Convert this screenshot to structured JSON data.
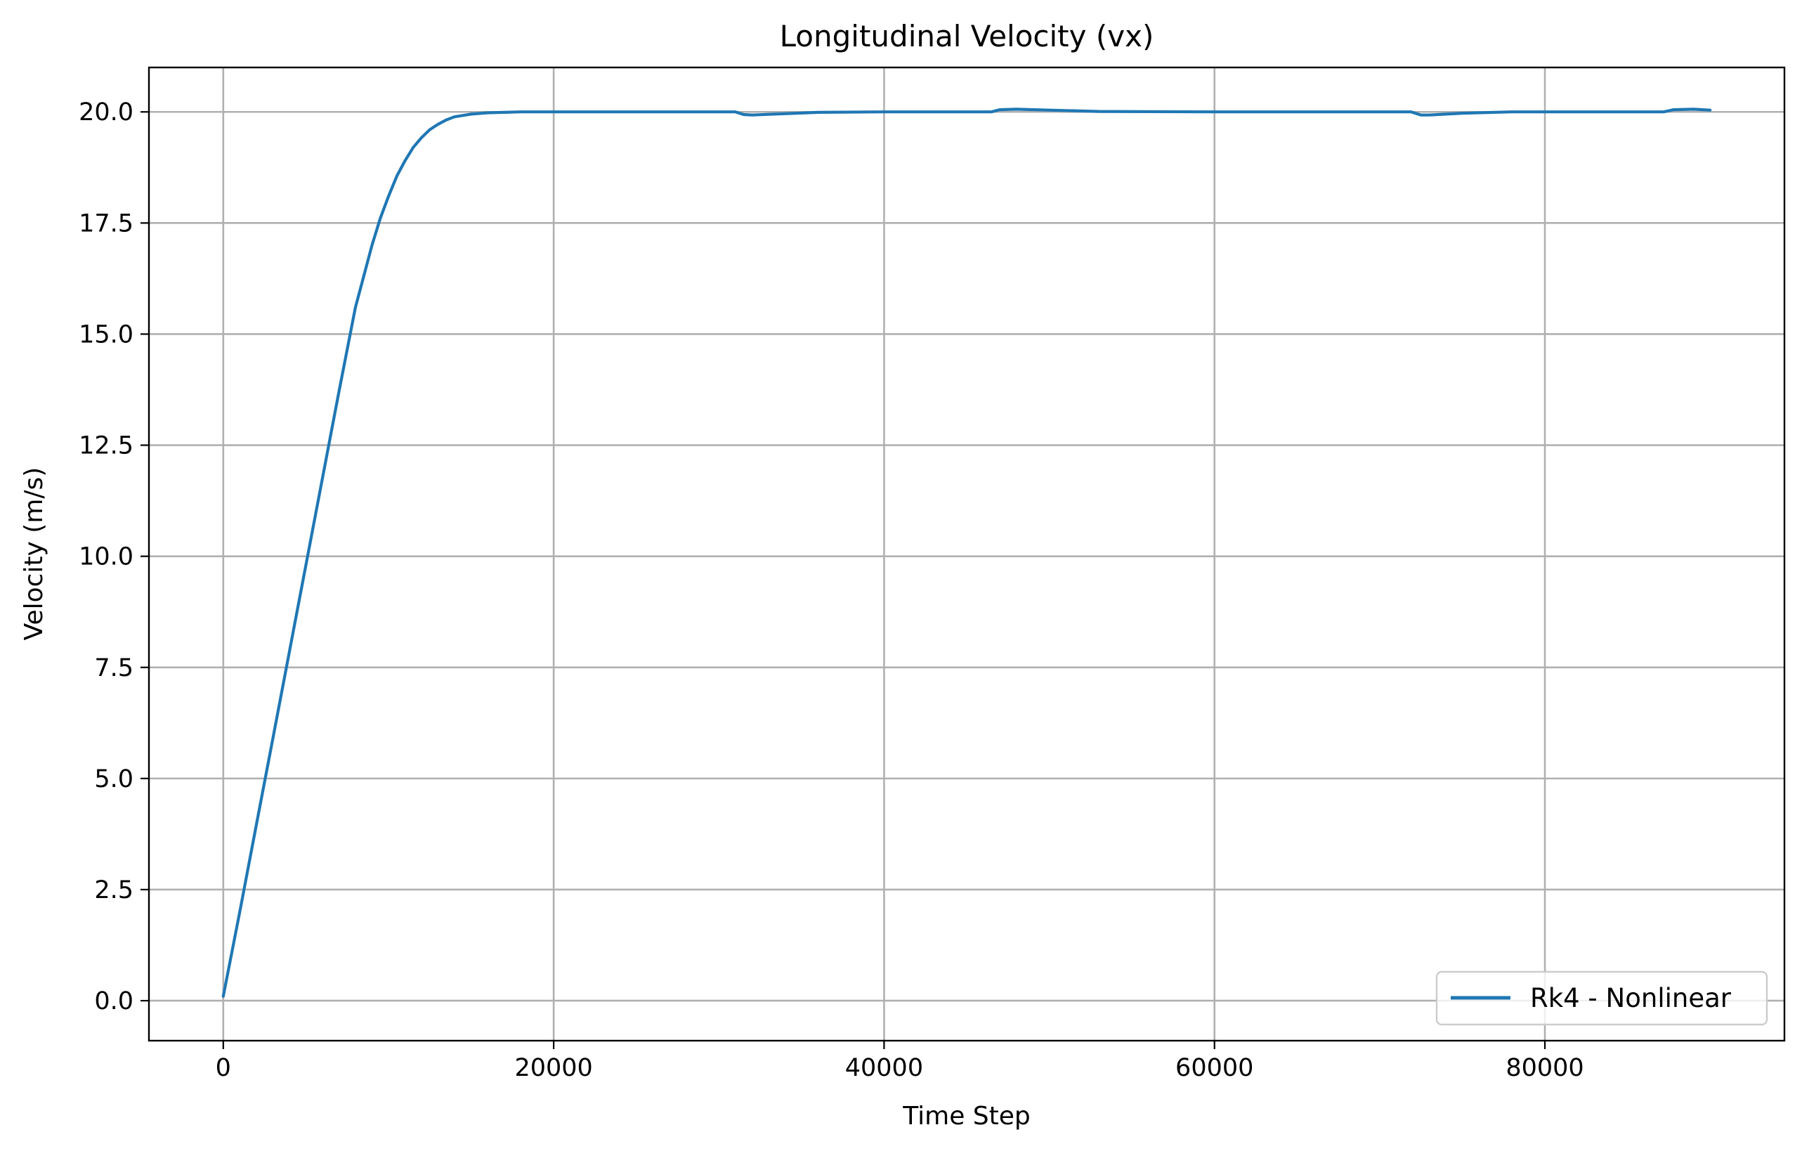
{
  "chart_data": {
    "type": "line",
    "title": "Longitudinal Velocity (vx)",
    "xlabel": "Time Step",
    "ylabel": "Velocity (m/s)",
    "xlim": [
      -4500,
      94500
    ],
    "ylim": [
      -0.9,
      21.0
    ],
    "xticks": [
      0,
      20000,
      40000,
      60000,
      80000
    ],
    "xtick_labels": [
      "0",
      "20000",
      "40000",
      "60000",
      "80000"
    ],
    "yticks": [
      0.0,
      2.5,
      5.0,
      7.5,
      10.0,
      12.5,
      15.0,
      17.5,
      20.0
    ],
    "ytick_labels": [
      "0.0",
      "2.5",
      "5.0",
      "7.5",
      "10.0",
      "12.5",
      "15.0",
      "17.5",
      "20.0"
    ],
    "grid": true,
    "legend_position": "lower-right",
    "series": [
      {
        "name": "Rk4 - Nonlinear",
        "color": "#1f77b4",
        "x": [
          0,
          1000,
          2000,
          3000,
          4000,
          5000,
          6000,
          7000,
          8000,
          9000,
          9500,
          10000,
          10500,
          11000,
          11500,
          12000,
          12500,
          13000,
          13500,
          14000,
          15000,
          16000,
          17000,
          18000,
          20000,
          25000,
          30000,
          31000,
          31500,
          32000,
          34000,
          36000,
          40000,
          46500,
          47000,
          48000,
          50000,
          53000,
          60000,
          70000,
          71900,
          72500,
          73000,
          75000,
          78000,
          85000,
          87200,
          87800,
          89000,
          90000
        ],
        "y": [
          0.1,
          2.0,
          3.95,
          5.9,
          7.85,
          9.8,
          11.75,
          13.7,
          15.6,
          17.0,
          17.6,
          18.1,
          18.55,
          18.9,
          19.2,
          19.42,
          19.6,
          19.72,
          19.82,
          19.89,
          19.95,
          19.98,
          19.99,
          20.0,
          20.0,
          20.0,
          20.0,
          20.0,
          19.94,
          19.93,
          19.96,
          19.99,
          20.0,
          20.0,
          20.05,
          20.06,
          20.04,
          20.01,
          20.0,
          20.0,
          20.0,
          19.93,
          19.93,
          19.97,
          20.0,
          20.0,
          20.0,
          20.05,
          20.06,
          20.04
        ]
      }
    ]
  }
}
